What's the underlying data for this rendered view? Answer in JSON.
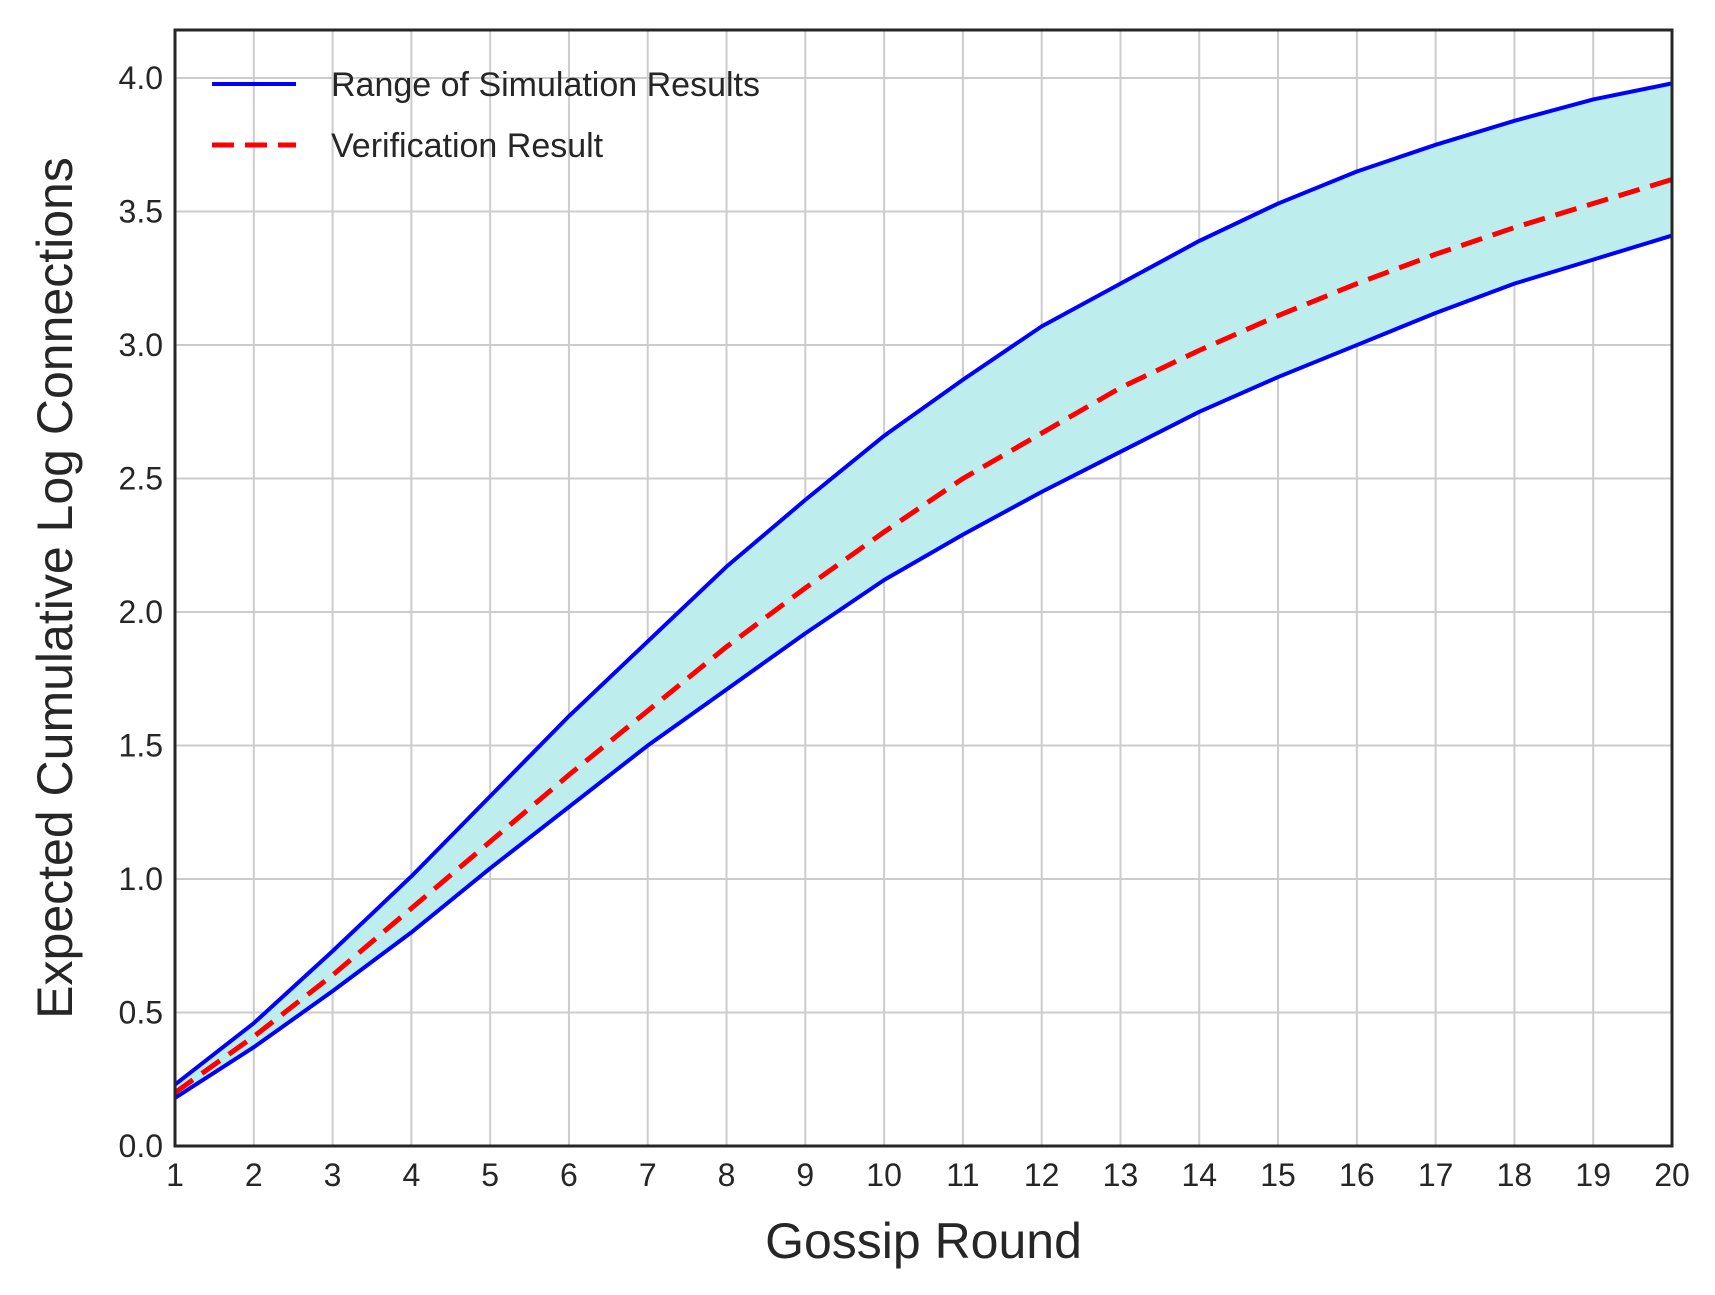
{
  "chart_data": {
    "type": "line",
    "xlabel": "Gossip Round",
    "ylabel": "Expected Cumulative Log Connections",
    "xlim": [
      1,
      20
    ],
    "ylim": [
      0,
      4.18
    ],
    "x_ticks": [
      1,
      2,
      3,
      4,
      5,
      6,
      7,
      8,
      9,
      10,
      11,
      12,
      13,
      14,
      15,
      16,
      17,
      18,
      19,
      20
    ],
    "y_ticks": [
      "0.0",
      "0.5",
      "1.0",
      "1.5",
      "2.0",
      "2.5",
      "3.0",
      "3.5",
      "4.0"
    ],
    "grid": true,
    "legend_position": "top-left",
    "x": [
      1,
      2,
      3,
      4,
      5,
      6,
      7,
      8,
      9,
      10,
      11,
      12,
      13,
      14,
      15,
      16,
      17,
      18,
      19,
      20
    ],
    "series": [
      {
        "name": "Range of Simulation Results",
        "role": "band-upper",
        "color": "#0000ff",
        "style": "solid",
        "values": [
          0.23,
          0.46,
          0.73,
          1.01,
          1.31,
          1.61,
          1.89,
          2.17,
          2.42,
          2.66,
          2.87,
          3.07,
          3.23,
          3.39,
          3.53,
          3.65,
          3.75,
          3.84,
          3.92,
          3.98
        ]
      },
      {
        "name": "",
        "role": "band-lower",
        "color": "#0000ff",
        "style": "solid",
        "values": [
          0.18,
          0.37,
          0.58,
          0.8,
          1.04,
          1.27,
          1.5,
          1.71,
          1.92,
          2.12,
          2.29,
          2.45,
          2.6,
          2.75,
          2.88,
          3.0,
          3.12,
          3.23,
          3.32,
          3.41
        ]
      },
      {
        "name": "Verification Result",
        "role": "line",
        "color": "#ff0000",
        "style": "dashed",
        "values": [
          0.2,
          0.41,
          0.64,
          0.89,
          1.14,
          1.39,
          1.63,
          1.87,
          2.09,
          2.3,
          2.5,
          2.67,
          2.84,
          2.98,
          3.11,
          3.23,
          3.34,
          3.44,
          3.53,
          3.62
        ]
      }
    ],
    "band_fill_color": "#bdeded"
  }
}
